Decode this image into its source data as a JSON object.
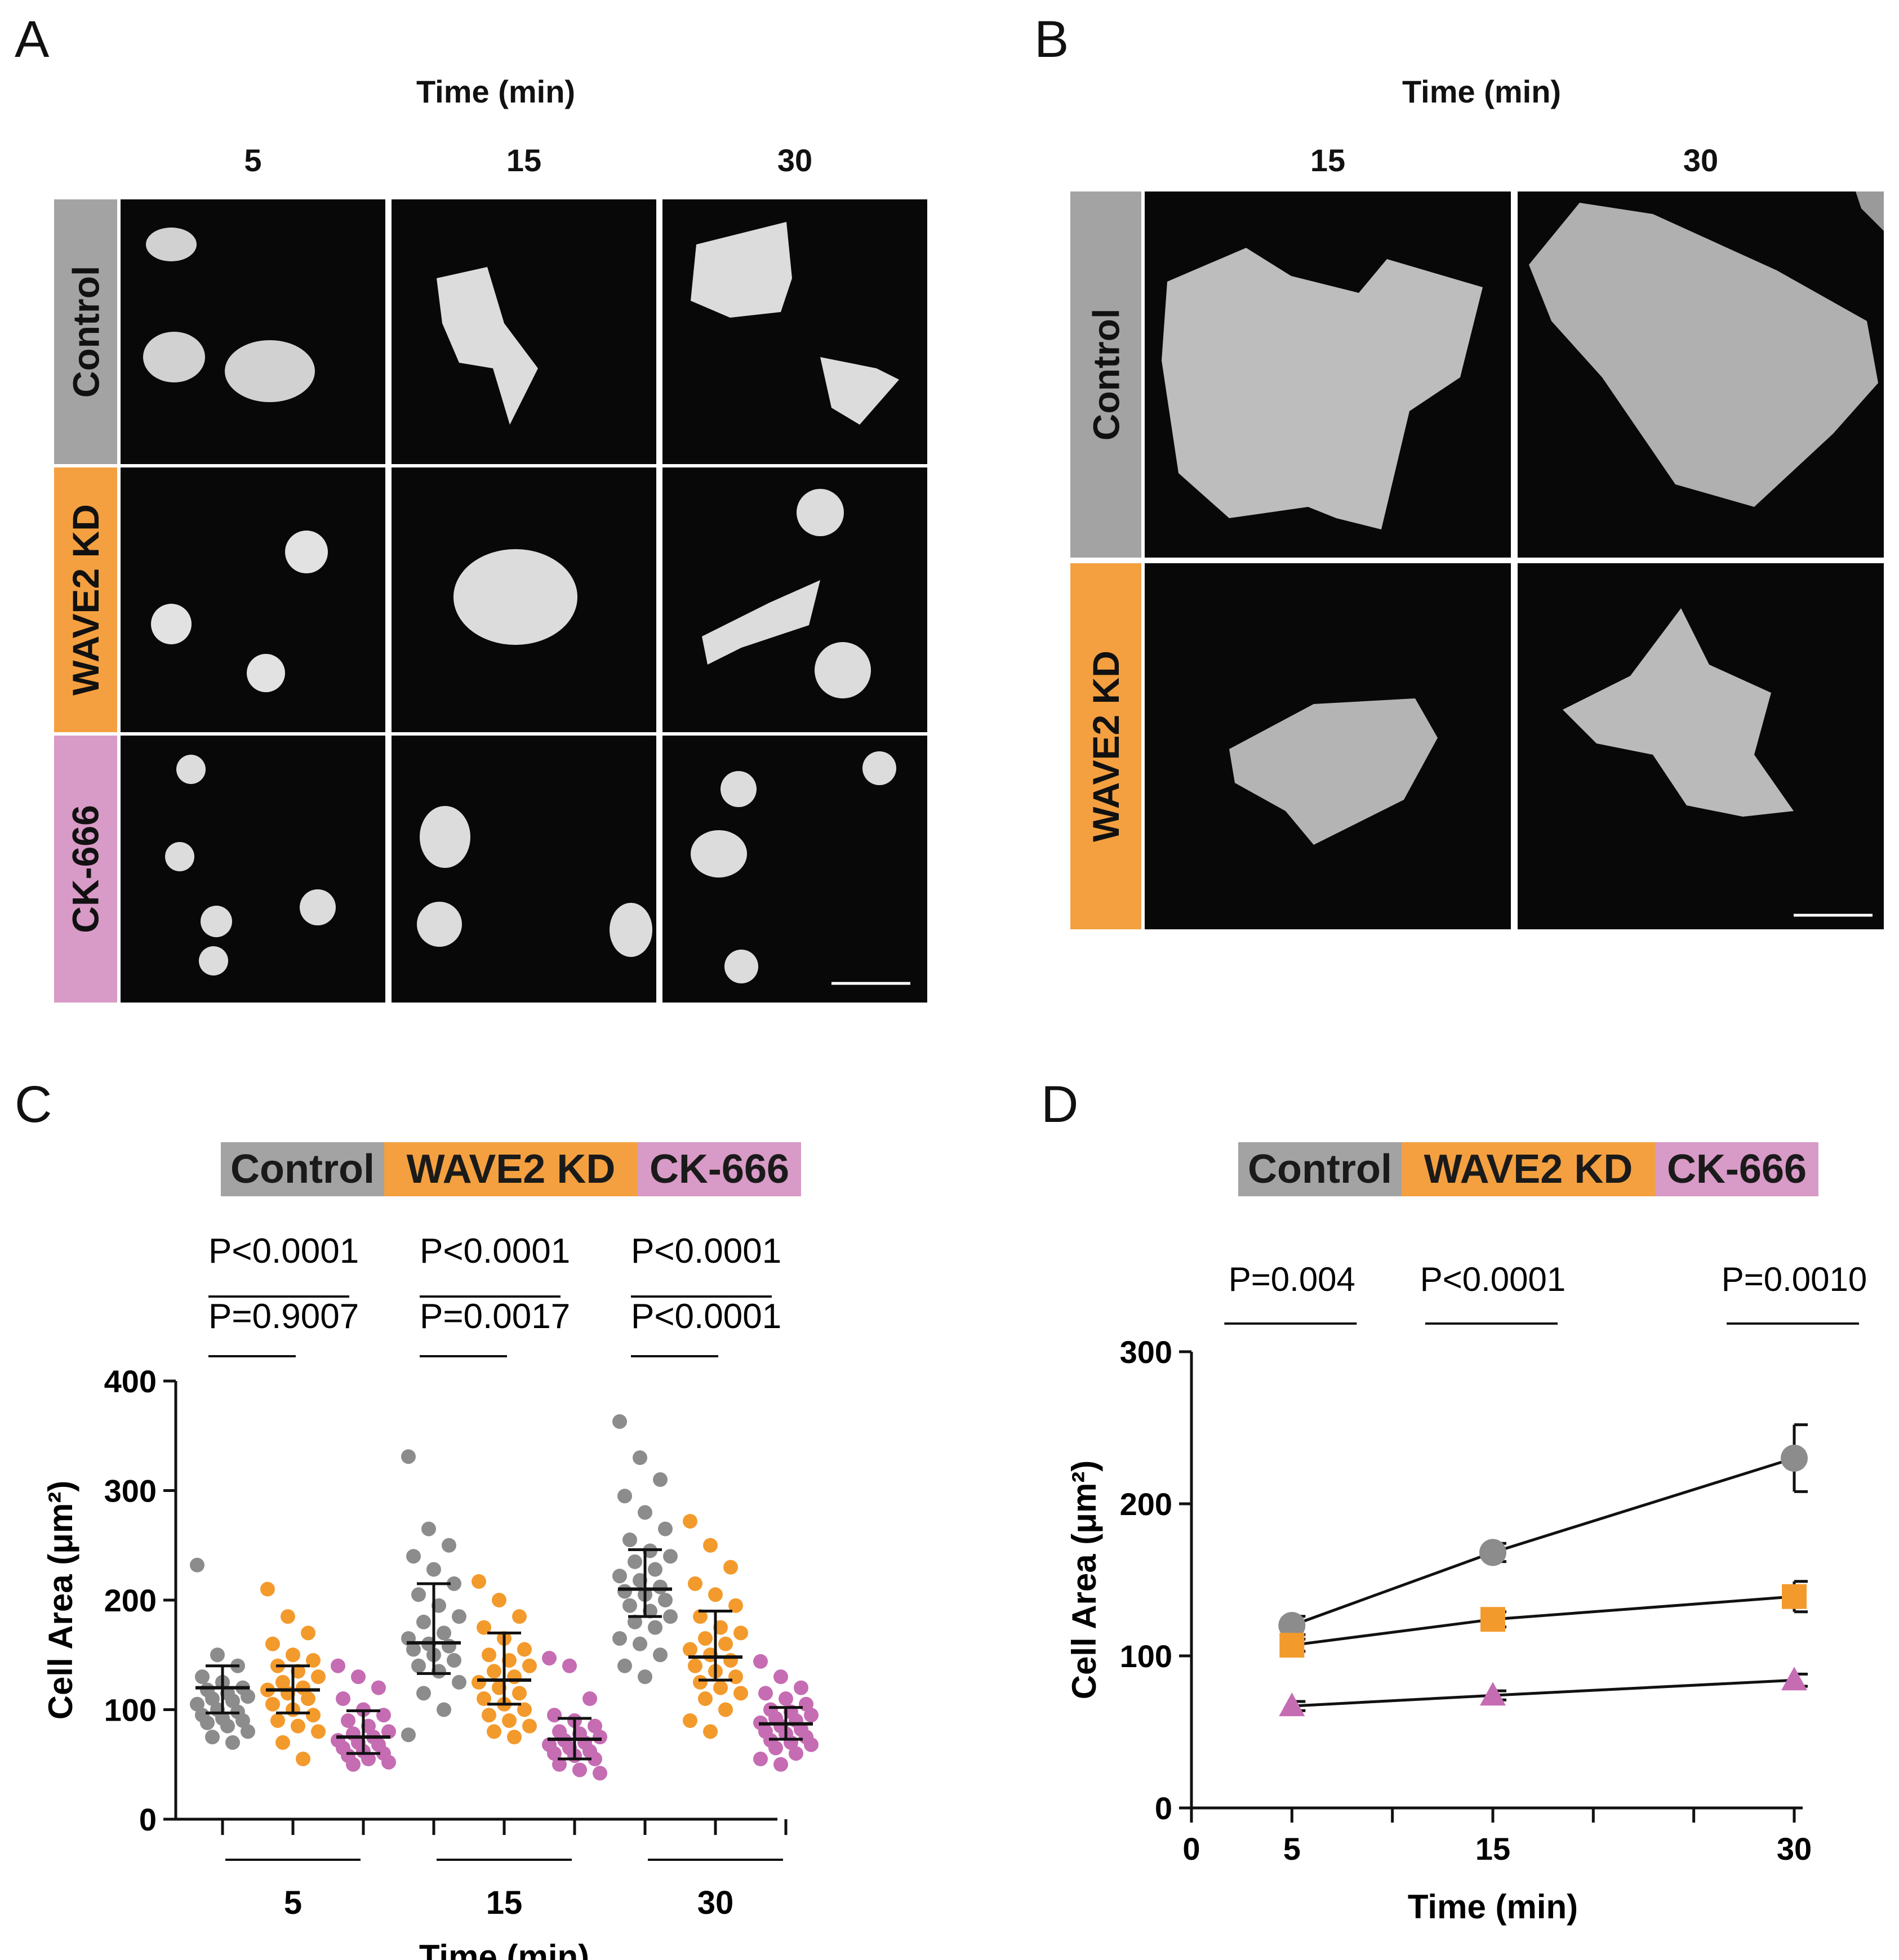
{
  "colors": {
    "control": "#a3a3a3",
    "wave2": "#f4a040",
    "ck666": "#d89ac6",
    "control_pt": "#8c8c8c",
    "wave2_pt": "#f39a2c",
    "ck666_pt": "#c56cb3"
  },
  "panel_a": {
    "letter": "A",
    "axis_title": "Time (min)",
    "columns": [
      "5",
      "15",
      "30"
    ],
    "rows": [
      "Control",
      "WAVE2 KD",
      "CK-666"
    ],
    "image_desc": "confocal micrographs of spreading cells"
  },
  "panel_b": {
    "letter": "B",
    "axis_title": "Time (min)",
    "columns": [
      "15",
      "30"
    ],
    "rows": [
      "Control",
      "WAVE2 KD"
    ]
  },
  "panel_c": {
    "letter": "C",
    "legend": [
      "Control",
      "WAVE2 KD",
      "CK-666"
    ],
    "pvalues": [
      {
        "top": "P<0.0001",
        "bottom": "P=0.9007"
      },
      {
        "top": "P<0.0001",
        "bottom": "P=0.0017"
      },
      {
        "top": "P<0.0001",
        "bottom": "P<0.0001"
      }
    ]
  },
  "panel_d": {
    "letter": "D",
    "legend": [
      "Control",
      "WAVE2 KD",
      "CK-666"
    ],
    "pvalues": [
      "P=0.004",
      "P<0.0001",
      "P=0.0010"
    ]
  },
  "chart_data": [
    {
      "type": "scatter",
      "panel": "C",
      "title": "",
      "xlabel": "Time (min)",
      "ylabel": "Cell Area (μm²)",
      "ylim": [
        0,
        400
      ],
      "yticks": [
        0,
        100,
        200,
        300,
        400
      ],
      "groups": [
        "5",
        "15",
        "30"
      ],
      "series": [
        {
          "name": "Control",
          "means": [
            120,
            161,
            210
          ],
          "sd_low": [
            97,
            133,
            185
          ],
          "sd_high": [
            140,
            215,
            246
          ],
          "points": [
            [
              232,
              150,
              140,
              130,
              125,
              120,
              118,
              115,
              112,
              110,
              108,
              105,
              100,
              98,
              95,
              92,
              90,
              88,
              85,
              80,
              75,
              70
            ],
            [
              331,
              265,
              250,
              240,
              228,
              215,
              205,
              195,
              185,
              180,
              170,
              165,
              160,
              158,
              155,
              150,
              145,
              140,
              135,
              125,
              115,
              100,
              77
            ],
            [
              363,
              330,
              310,
              295,
              280,
              265,
              255,
              245,
              240,
              235,
              228,
              222,
              218,
              212,
              208,
              205,
              200,
              195,
              190,
              185,
              180,
              175,
              165,
              160,
              150,
              140,
              130
            ]
          ]
        },
        {
          "name": "WAVE2 KD",
          "means": [
            118,
            127,
            148
          ],
          "sd_low": [
            97,
            105,
            127
          ],
          "sd_high": [
            140,
            170,
            190
          ],
          "points": [
            [
              210,
              185,
              170,
              160,
              150,
              145,
              140,
              135,
              130,
              125,
              120,
              118,
              115,
              110,
              105,
              100,
              95,
              90,
              85,
              80,
              70,
              55
            ],
            [
              217,
              200,
              185,
              175,
              165,
              155,
              150,
              145,
              140,
              135,
              130,
              125,
              120,
              115,
              110,
              105,
              100,
              95,
              90,
              85,
              80,
              75
            ],
            [
              272,
              250,
              230,
              215,
              205,
              195,
              185,
              175,
              170,
              165,
              160,
              155,
              150,
              145,
              140,
              135,
              130,
              125,
              120,
              115,
              110,
              100,
              90,
              80
            ]
          ]
        },
        {
          "name": "CK-666",
          "means": [
            75,
            73,
            87
          ],
          "sd_low": [
            60,
            55,
            73
          ],
          "sd_high": [
            99,
            92,
            102
          ],
          "points": [
            [
              140,
              130,
              120,
              110,
              100,
              95,
              90,
              85,
              80,
              78,
              75,
              72,
              70,
              68,
              65,
              62,
              60,
              58,
              55,
              52,
              50
            ],
            [
              147,
              140,
              110,
              95,
              90,
              85,
              80,
              78,
              75,
              72,
              70,
              68,
              65,
              62,
              60,
              58,
              55,
              50,
              45,
              42
            ],
            [
              144,
              130,
              120,
              115,
              110,
              105,
              100,
              98,
              95,
              92,
              90,
              88,
              85,
              82,
              80,
              78,
              75,
              72,
              70,
              68,
              65,
              60,
              55,
              50
            ]
          ]
        }
      ]
    },
    {
      "type": "line",
      "panel": "D",
      "title": "",
      "xlabel": "Time (min)",
      "ylabel": "Cell Area (μm²)",
      "x": [
        5,
        15,
        30
      ],
      "xlim": [
        0,
        30
      ],
      "xticks": [
        0,
        5,
        15,
        30
      ],
      "ylim": [
        0,
        300
      ],
      "yticks": [
        0,
        100,
        200,
        300
      ],
      "series": [
        {
          "name": "Control",
          "marker": "circle",
          "values": [
            120,
            168,
            230
          ],
          "err": [
            6,
            6,
            22
          ]
        },
        {
          "name": "WAVE2 KD",
          "marker": "square",
          "values": [
            107,
            124,
            139
          ],
          "err": [
            4,
            5,
            10
          ]
        },
        {
          "name": "CK-666",
          "marker": "triangle",
          "values": [
            67,
            74,
            84
          ],
          "err": [
            3,
            3,
            4
          ]
        }
      ]
    }
  ]
}
